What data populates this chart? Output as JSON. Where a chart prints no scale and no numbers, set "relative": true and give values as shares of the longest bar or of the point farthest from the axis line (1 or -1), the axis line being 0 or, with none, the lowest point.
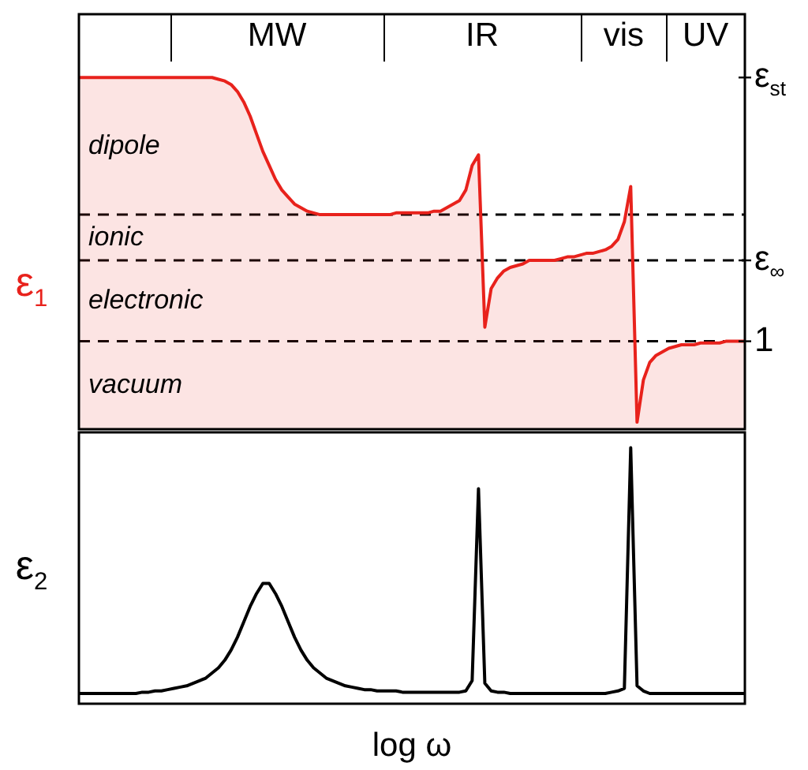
{
  "chart_data": [
    {
      "type": "area",
      "ylabel": "ε$_{1}$",
      "relative": true,
      "categories": [
        null,
        null,
        null,
        null,
        null,
        null,
        null,
        null,
        null,
        null,
        null,
        null,
        null,
        null,
        null,
        null,
        null,
        null,
        null,
        null,
        null,
        null,
        null,
        null,
        null,
        null,
        null,
        null,
        null,
        null,
        null,
        null,
        null,
        null,
        null,
        null,
        null,
        null,
        null,
        null,
        null,
        null,
        null,
        null,
        null,
        null,
        null,
        null,
        null,
        null,
        null,
        null,
        null,
        null,
        null,
        null,
        null,
        null,
        null,
        null,
        null,
        null,
        null,
        null,
        null,
        null,
        null,
        null,
        null,
        null,
        null,
        null,
        null,
        null,
        null,
        null,
        null,
        null,
        null,
        null,
        null,
        null,
        null,
        null,
        null,
        null,
        null,
        null,
        null,
        null,
        null,
        null,
        null,
        null,
        null,
        null,
        null,
        null,
        null,
        null,
        null,
        null,
        null,
        null,
        null,
        null
      ],
      "series": [
        {
          "color": "#e8221c",
          "values": [
            1,
            1,
            1,
            1,
            1,
            1,
            1,
            1,
            1,
            1,
            1,
            1,
            1,
            1,
            1,
            1,
            1,
            1,
            1,
            1,
            1,
            1,
            0.995,
            0.99,
            0.98,
            0.96,
            0.93,
            0.89,
            0.84,
            0.79,
            0.75,
            0.71,
            0.68,
            0.66,
            0.64,
            0.63,
            0.62,
            0.615,
            0.61,
            0.61,
            0.61,
            0.61,
            0.61,
            0.61,
            0.61,
            0.61,
            0.61,
            0.61,
            0.61,
            0.61,
            0.615,
            0.615,
            0.615,
            0.615,
            0.615,
            0.615,
            0.62,
            0.62,
            0.63,
            0.64,
            0.65,
            0.68,
            0.75,
            0.78,
            0.29,
            0.4,
            0.43,
            0.45,
            0.46,
            0.465,
            0.47,
            0.48,
            0.48,
            0.48,
            0.48,
            0.48,
            0.485,
            0.49,
            0.49,
            0.495,
            0.5,
            0.5,
            0.505,
            0.51,
            0.52,
            0.54,
            0.59,
            0.69,
            0.02,
            0.14,
            0.19,
            0.21,
            0.22,
            0.23,
            0.235,
            0.24,
            0.24,
            0.24,
            0.245,
            0.245,
            0.245,
            0.245,
            0.25,
            0.25,
            0.25,
            0.25
          ]
        }
      ],
      "ref_lines": [
        {
          "axis": "y",
          "value": 0.61,
          "line_style": "dashed"
        },
        {
          "axis": "y",
          "value": 0.48,
          "label": "ε$_{∞}$",
          "line_style": "dashed"
        },
        {
          "axis": "y",
          "value": 0.25,
          "line_style": "dashed"
        }
      ],
      "annotations": [
        "MW",
        "IR",
        "vis",
        "UV",
        "ε$_{st}$",
        "dipole",
        "ionic",
        "electronic",
        "vacuum",
        "1"
      ]
    },
    {
      "type": "line",
      "ylabel": "ε$_{2}$",
      "xlabel": "log ω",
      "relative": true,
      "categories": [
        null,
        null,
        null,
        null,
        null,
        null,
        null,
        null,
        null,
        null,
        null,
        null,
        null,
        null,
        null,
        null,
        null,
        null,
        null,
        null,
        null,
        null,
        null,
        null,
        null,
        null,
        null,
        null,
        null,
        null,
        null,
        null,
        null,
        null,
        null,
        null,
        null,
        null,
        null,
        null,
        null,
        null,
        null,
        null,
        null,
        null,
        null,
        null,
        null,
        null,
        null,
        null,
        null,
        null,
        null,
        null,
        null,
        null,
        null,
        null,
        null,
        null,
        null,
        null,
        null,
        null,
        null,
        null,
        null,
        null,
        null,
        null,
        null,
        null,
        null,
        null,
        null,
        null,
        null,
        null,
        null,
        null,
        null,
        null,
        null,
        null,
        null,
        null,
        null,
        null,
        null,
        null,
        null,
        null,
        null,
        null,
        null,
        null,
        null,
        null,
        null,
        null,
        null,
        null,
        null,
        null
      ],
      "series": [
        {
          "color": "#000000",
          "values": [
            0.04,
            0.04,
            0.04,
            0.04,
            0.04,
            0.04,
            0.04,
            0.04,
            0.04,
            0.04,
            0.045,
            0.045,
            0.05,
            0.05,
            0.055,
            0.06,
            0.065,
            0.07,
            0.08,
            0.09,
            0.1,
            0.12,
            0.14,
            0.17,
            0.21,
            0.26,
            0.32,
            0.38,
            0.43,
            0.47,
            0.47,
            0.43,
            0.38,
            0.32,
            0.26,
            0.21,
            0.17,
            0.14,
            0.12,
            0.1,
            0.09,
            0.08,
            0.07,
            0.065,
            0.06,
            0.055,
            0.055,
            0.05,
            0.05,
            0.05,
            0.05,
            0.045,
            0.045,
            0.045,
            0.045,
            0.045,
            0.045,
            0.045,
            0.045,
            0.045,
            0.045,
            0.05,
            0.09,
            0.84,
            0.08,
            0.05,
            0.045,
            0.045,
            0.04,
            0.04,
            0.04,
            0.04,
            0.04,
            0.04,
            0.04,
            0.04,
            0.04,
            0.04,
            0.04,
            0.04,
            0.04,
            0.04,
            0.04,
            0.04,
            0.045,
            0.05,
            0.06,
            1,
            0.07,
            0.05,
            0.04,
            0.04,
            0.04,
            0.04,
            0.04,
            0.04,
            0.04,
            0.04,
            0.04,
            0.04,
            0.04,
            0.04,
            0.04,
            0.04,
            0.04,
            0.04
          ]
        }
      ]
    }
  ]
}
